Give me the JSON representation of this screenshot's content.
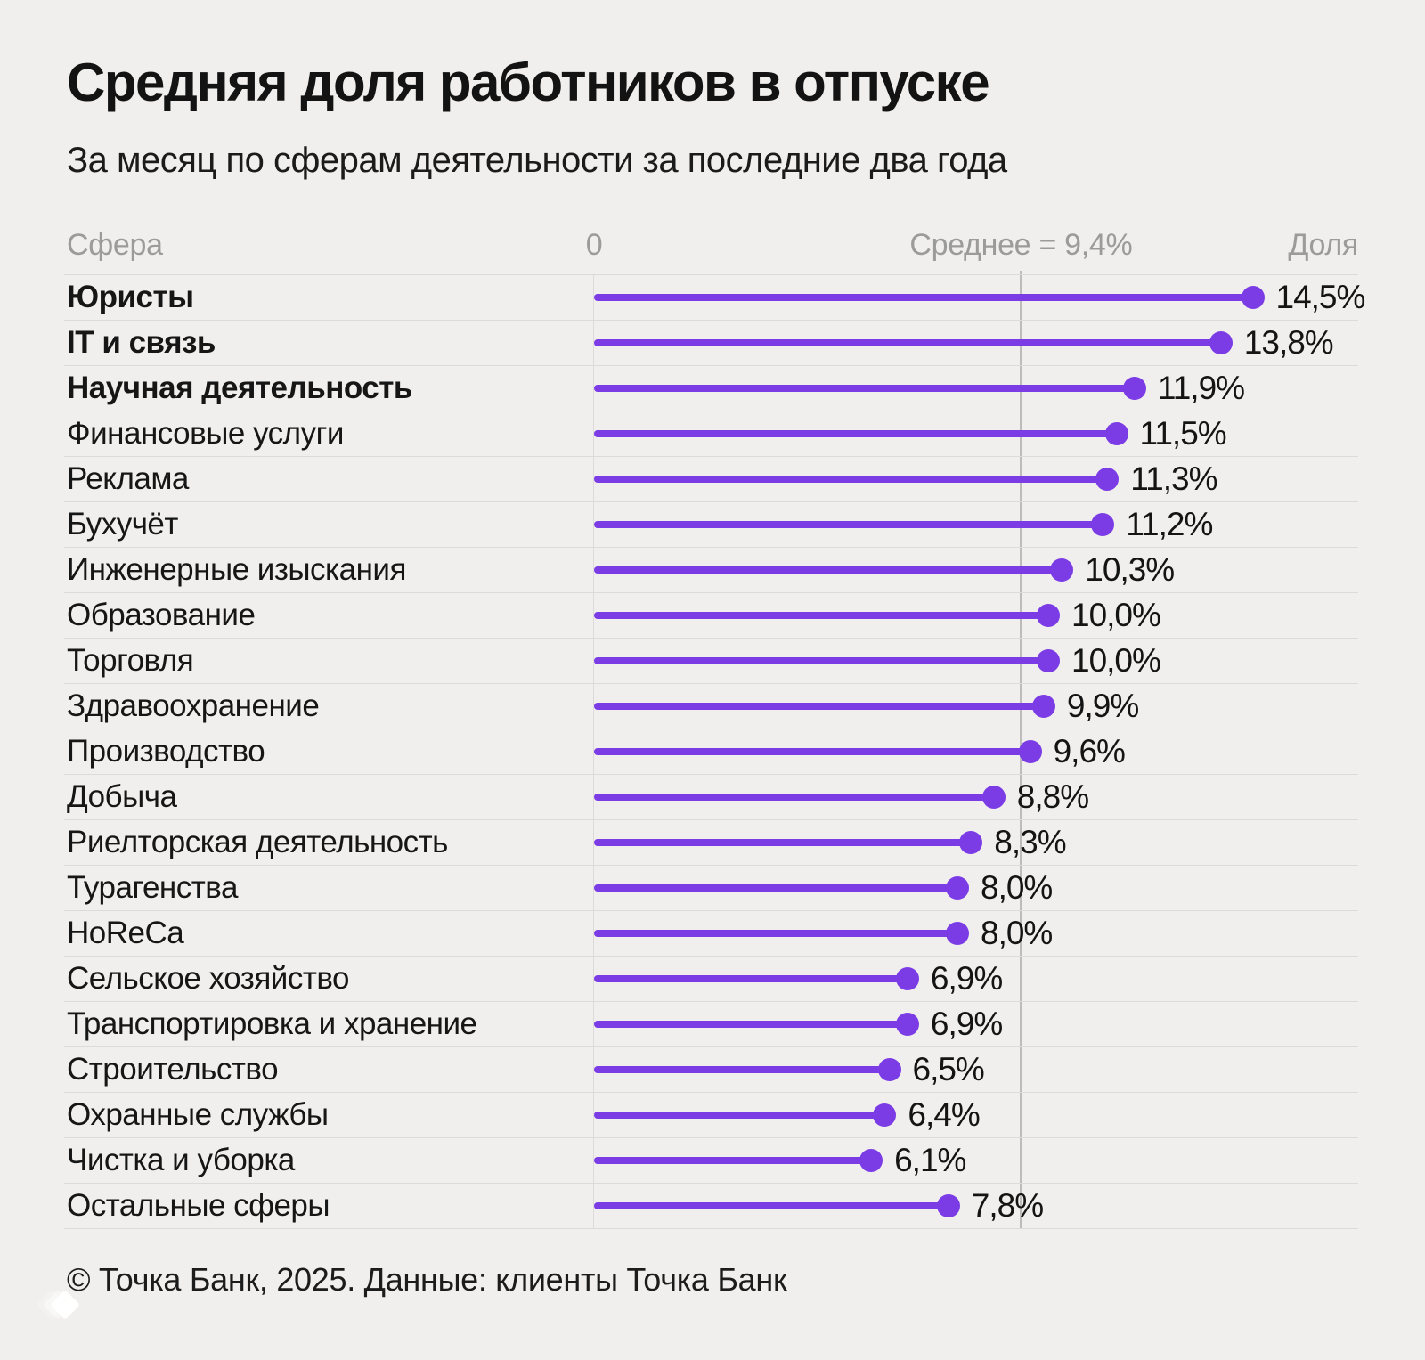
{
  "header": {
    "title": "Средняя доля работников в отпуске",
    "subtitle": "За месяц по сферам деятельности за последние два года"
  },
  "table_headers": {
    "sphere": "Сфера",
    "zero": "0",
    "average": "Среднее = 9,4%",
    "share": "Доля"
  },
  "chart_data": {
    "type": "bar",
    "orientation": "horizontal",
    "unit": "%",
    "title": "Средняя доля работников в отпуске",
    "subtitle": "За месяц по сферам деятельности за последние два года",
    "xlim": [
      0,
      14.5
    ],
    "average": 9.4,
    "average_label": "Среднее = 9,4%",
    "grid": false,
    "categories": [
      "Юристы",
      "IT и связь",
      "Научная деятельность",
      "Финансовые услуги",
      "Реклама",
      "Бухучёт",
      "Инженерные изыскания",
      "Образование",
      "Торговля",
      "Здравоохранение",
      "Производство",
      "Добыча",
      "Риелторская деятельность",
      "Турагенства",
      "HoReCa",
      "Сельское хозяйство",
      "Транспортировка и хранение",
      "Строительство",
      "Охранные службы",
      "Чистка и уборка",
      "Остальные сферы"
    ],
    "values": [
      14.5,
      13.8,
      11.9,
      11.5,
      11.3,
      11.2,
      10.3,
      10.0,
      10.0,
      9.9,
      9.6,
      8.8,
      8.3,
      8.0,
      8.0,
      6.9,
      6.9,
      6.5,
      6.4,
      6.1,
      7.8
    ],
    "value_labels": [
      "14,5%",
      "13,8%",
      "11,9%",
      "11,5%",
      "11,3%",
      "11,2%",
      "10,3%",
      "10,0%",
      "10,0%",
      "9,9%",
      "9,6%",
      "8,8%",
      "8,3%",
      "8,0%",
      "8,0%",
      "6,9%",
      "6,9%",
      "6,5%",
      "6,4%",
      "6,1%",
      "7,8%"
    ],
    "bold_flags": [
      true,
      true,
      true,
      false,
      false,
      false,
      false,
      false,
      false,
      false,
      false,
      false,
      false,
      false,
      false,
      false,
      false,
      false,
      false,
      false,
      false
    ]
  },
  "footer": {
    "credit": "© Точка Банк, 2025. Данные: клиенты Точка Банк"
  },
  "colors": {
    "accent": "#7B3CE6",
    "background": "#F0EFED",
    "muted_text": "#9B9B99",
    "separator": "#DCDBD9",
    "average_line": "#BDBCBA",
    "text": "#151515",
    "logo": "#FFFFFF"
  }
}
